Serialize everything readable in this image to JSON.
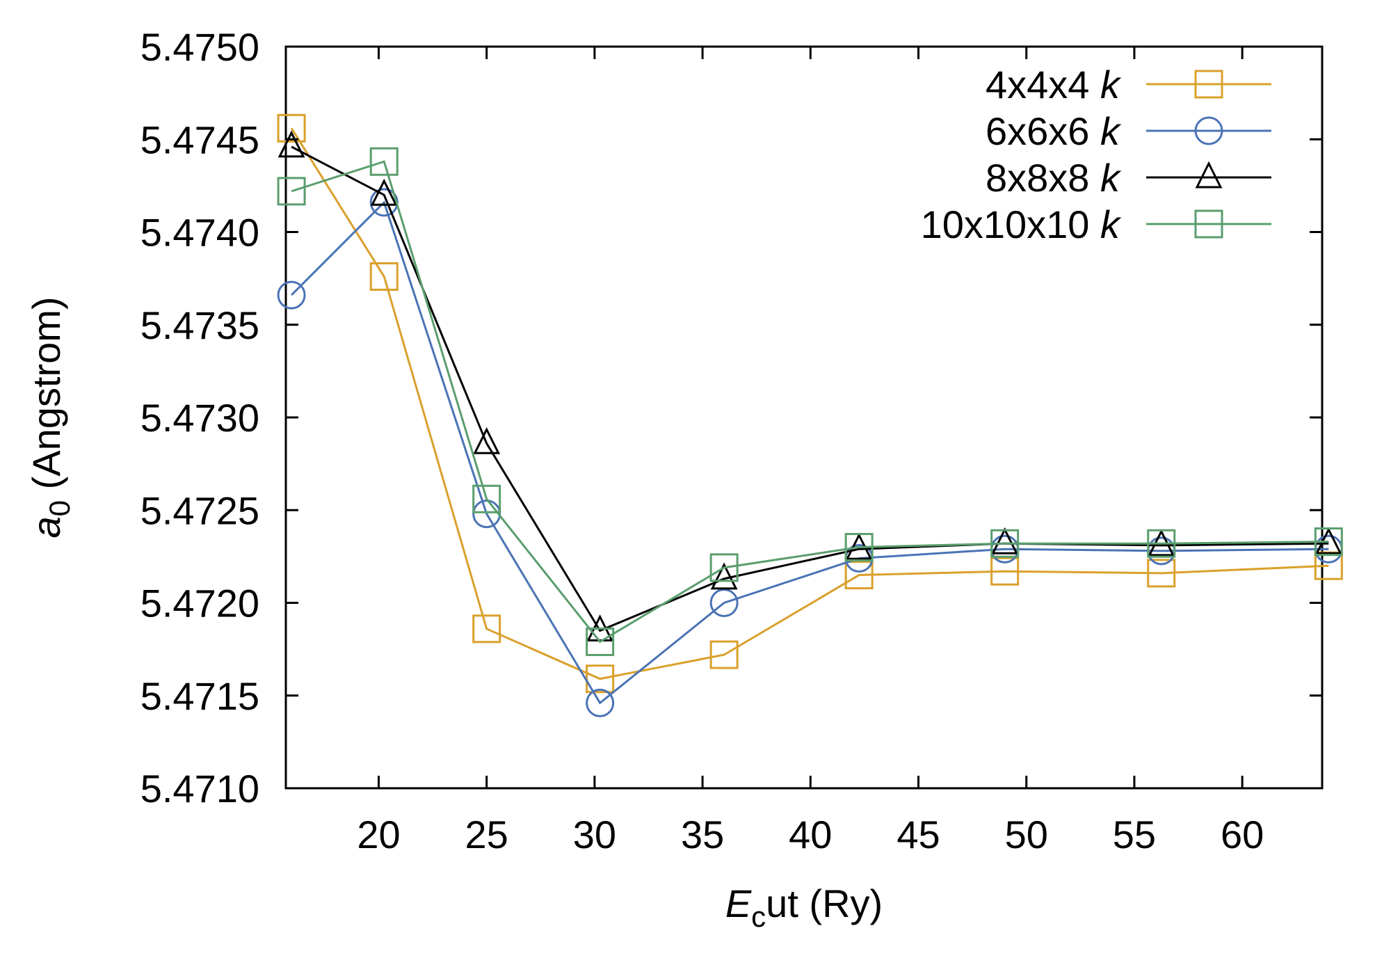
{
  "chart_data": {
    "type": "line",
    "xlabel": {
      "main": "E",
      "sub": "c",
      "rest": "ut (Ry)"
    },
    "ylabel": {
      "main": "a",
      "sub": "0",
      "rest": " (Angstrom)"
    },
    "xlim": [
      15.7,
      63.7
    ],
    "ylim": [
      5.471,
      5.475
    ],
    "xticks": [
      20,
      25,
      30,
      35,
      40,
      45,
      50,
      55,
      60
    ],
    "yticks": [
      "5.4710",
      "5.4715",
      "5.4720",
      "5.4725",
      "5.4730",
      "5.4735",
      "5.4740",
      "5.4745",
      "5.4750"
    ],
    "legend_position": "top-right",
    "x": [
      15.96,
      20.25,
      25.0,
      30.25,
      36.0,
      42.25,
      49.0,
      56.25,
      64.0
    ],
    "series": [
      {
        "name_main": "4x4x4 ",
        "name_italic": "k",
        "color": "#DAA02C",
        "marker": "square",
        "values": [
          5.47456,
          5.47376,
          5.47186,
          5.47159,
          5.47172,
          5.47215,
          5.47217,
          5.47216,
          5.4722
        ]
      },
      {
        "name_main": "6x6x6 ",
        "name_italic": "k",
        "color": "#4A73B5",
        "marker": "circle",
        "values": [
          5.47366,
          5.47416,
          5.47248,
          5.47146,
          5.472,
          5.47224,
          5.47229,
          5.47228,
          5.47229
        ]
      },
      {
        "name_main": "8x8x8 ",
        "name_italic": "k",
        "color": "#000000",
        "marker": "triangle",
        "values": [
          5.47446,
          5.4742,
          5.47286,
          5.47185,
          5.47213,
          5.47229,
          5.47232,
          5.47231,
          5.47232
        ]
      },
      {
        "name_main": "10x10x10 ",
        "name_italic": "k",
        "color": "#5A9E6E",
        "marker": "square",
        "values": [
          5.47422,
          5.47438,
          5.47256,
          5.47179,
          5.47219,
          5.4723,
          5.47232,
          5.47232,
          5.47233
        ]
      }
    ]
  }
}
